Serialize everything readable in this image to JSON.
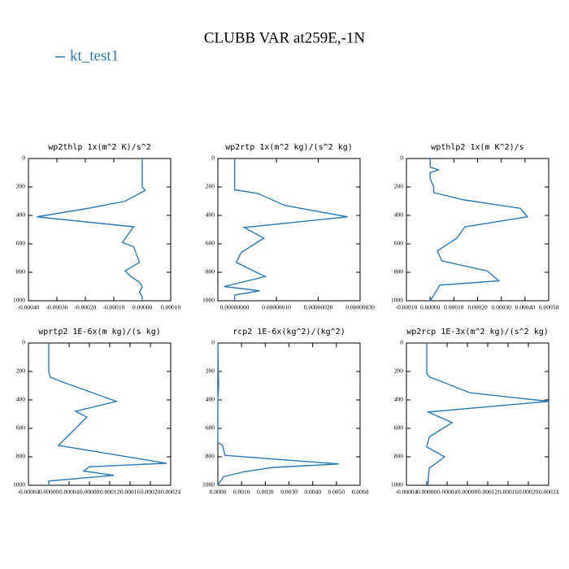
{
  "title": "CLUBB VAR at259E,-1N",
  "chart_data": [
    {
      "type": "line",
      "title": "wp2thlp  1x(m^2 K)/s^2",
      "series": [
        {
          "name": "kt_test1",
          "color": "#2a7ab8",
          "values": [
            0,
            0,
            1e-05,
            -5e-06,
            -6e-05,
            -0.00019,
            -0.00037,
            -3e-05,
            -7e-05,
            -3e-05,
            -1e-05,
            -6e-05,
            -4e-05,
            -1e-05,
            0,
            -1e-05,
            0,
            0
          ]
        }
      ],
      "y": [
        0,
        200,
        225,
        240,
        300,
        350,
        410,
        480,
        590,
        620,
        730,
        790,
        830,
        870,
        900,
        940,
        970,
        1000
      ],
      "xlim": [
        -0.0004,
        0.0001
      ],
      "ylim": [
        0,
        1000
      ],
      "yticks": [
        0,
        200,
        400,
        600,
        800,
        1000
      ],
      "xticks": [
        {
          "value": -0.0004,
          "label": "-0.00040"
        },
        {
          "value": -0.0003,
          "label": "-0.00030"
        },
        {
          "value": -0.0002,
          "label": "-0.00020"
        },
        {
          "value": -0.0001,
          "label": "-0.00010"
        },
        {
          "value": 0,
          "label": "0.00000"
        },
        {
          "value": 0.0001,
          "label": "0.00010"
        }
      ]
    },
    {
      "type": "line",
      "title": "wp2rtp  1x(m^2 kg)/(s^2 kg)",
      "series": [
        {
          "color": "#2a7ab8",
          "values": [
            0,
            0,
            5.5e-08,
            1.2e-07,
            2.7e-07,
            2.3e-08,
            7e-08,
            1.6e-08,
            4e-09,
            7.3e-08,
            -2.5e-08,
            6e-08,
            0,
            0
          ]
        }
      ],
      "y": [
        0,
        220,
        245,
        330,
        410,
        485,
        560,
        660,
        730,
        830,
        900,
        930,
        960,
        1000
      ],
      "xlim": [
        -4e-08,
        3e-07
      ],
      "ylim": [
        0,
        1000
      ],
      "yticks": [
        0,
        200,
        400,
        600,
        800,
        1000
      ],
      "xticks": [
        {
          "value": 0,
          "label": "0.00000000"
        },
        {
          "value": 1e-07,
          "label": "0.00000010"
        },
        {
          "value": 2e-07,
          "label": "0.00000020"
        },
        {
          "value": 3e-07,
          "label": "0.00000030"
        }
      ]
    },
    {
      "type": "line",
      "title": "wpthlp2  1x(m K^2)/s",
      "series": [
        {
          "color": "#2a7ab8",
          "values": [
            0,
            0,
            3.5e-05,
            0,
            0,
            1.5e-05,
            1.5e-05,
            0.00014,
            0.00038,
            0.00041,
            0.000147,
            0.000113,
            3e-05,
            5e-05,
            0.00024,
            0.00029,
            4e-05,
            2e-05,
            0
          ]
        }
      ],
      "y": [
        0,
        60,
        80,
        100,
        140,
        200,
        240,
        290,
        350,
        410,
        480,
        560,
        650,
        720,
        790,
        860,
        890,
        950,
        1000
      ],
      "xlim": [
        -0.0001,
        0.0005
      ],
      "ylim": [
        0,
        1000
      ],
      "yticks": [
        0,
        200,
        400,
        600,
        800,
        1000
      ],
      "xticks": [
        {
          "value": -0.0001,
          "label": "-0.00010"
        },
        {
          "value": 0,
          "label": "0.00000"
        },
        {
          "value": 0.0001,
          "label": "0.00010"
        },
        {
          "value": 0.0002,
          "label": "0.00020"
        },
        {
          "value": 0.0003,
          "label": "0.00030"
        },
        {
          "value": 0.0004,
          "label": "0.00040"
        },
        {
          "value": 0.0005,
          "label": "0.00050"
        }
      ]
    },
    {
      "type": "line",
      "title": "wprtp2  1E-6x(m kg)/(s kg)",
      "series": [
        {
          "color": "#2a7ab8",
          "values": [
            0,
            0,
            3e-06,
            2.4e-05,
            0.000133,
            5.3e-05,
            7.5e-05,
            1.9e-05,
            0.000232,
            8e-05,
            6.9e-05,
            0.000128,
            0,
            0
          ]
        }
      ],
      "y": [
        0,
        200,
        240,
        270,
        410,
        480,
        520,
        720,
        845,
        870,
        900,
        930,
        970,
        1000
      ],
      "xlim": [
        -4e-05,
        0.00024
      ],
      "ylim": [
        0,
        1000
      ],
      "yticks": [
        0,
        200,
        400,
        600,
        800,
        1000
      ],
      "xticks": [
        {
          "value": -4e-05,
          "label": "-0.00004"
        },
        {
          "value": 0,
          "label": "0.00000"
        },
        {
          "value": 4e-05,
          "label": "0.00004"
        },
        {
          "value": 8e-05,
          "label": "0.00008"
        },
        {
          "value": 0.00012,
          "label": "0.00012"
        },
        {
          "value": 0.00016,
          "label": "0.00016"
        },
        {
          "value": 0.0002,
          "label": "0.00020"
        },
        {
          "value": 0.00024,
          "label": "0.00024"
        }
      ]
    },
    {
      "type": "line",
      "title": "rcp2  1E-6x(kg^2)/(kg^2)",
      "series": [
        {
          "color": "#2a7ab8",
          "values": [
            0,
            3e-05,
            0,
            0,
            0.0002,
            0.0003,
            0.0051,
            0.0023,
            0.0011,
            0.00024,
            0
          ]
        }
      ],
      "y": [
        0,
        300,
        410,
        700,
        720,
        790,
        850,
        875,
        905,
        940,
        1000
      ],
      "xlim": [
        0,
        0.006
      ],
      "ylim": [
        0,
        1000
      ],
      "yticks": [
        0,
        200,
        400,
        600,
        800,
        1000
      ],
      "xticks": [
        {
          "value": 0,
          "label": "0.0000"
        },
        {
          "value": 0.001,
          "label": "0.0010"
        },
        {
          "value": 0.002,
          "label": "0.0020"
        },
        {
          "value": 0.003,
          "label": "0.0030"
        },
        {
          "value": 0.004,
          "label": "0.0040"
        },
        {
          "value": 0.005,
          "label": "0.0050"
        },
        {
          "value": 0.006,
          "label": "0.0060"
        }
      ]
    },
    {
      "type": "line",
      "title": "wp2rcp  1E-3x(m^2 kg)/(s^2 kg)",
      "series": [
        {
          "color": "#2a7ab8",
          "values": [
            0,
            0,
            6e-06,
            3.2e-05,
            8.5e-05,
            0.00024,
            3e-06,
            5e-05,
            5e-06,
            0,
            3.5e-05,
            5e-06,
            3e-06,
            3e-06
          ]
        }
      ],
      "y": [
        0,
        215,
        240,
        275,
        350,
        410,
        485,
        560,
        660,
        730,
        800,
        880,
        950,
        1000
      ],
      "xlim": [
        -4e-05,
        0.00024
      ],
      "ylim": [
        0,
        1000
      ],
      "yticks": [
        0,
        200,
        400,
        600,
        800,
        1000
      ],
      "xticks": [
        {
          "value": -4e-05,
          "label": "-0.00004"
        },
        {
          "value": 0,
          "label": "0.00000"
        },
        {
          "value": 4e-05,
          "label": "0.00004"
        },
        {
          "value": 8e-05,
          "label": "0.00008"
        },
        {
          "value": 0.00012,
          "label": "0.00012"
        },
        {
          "value": 0.00016,
          "label": "0.00016"
        },
        {
          "value": 0.0002,
          "label": "0.00020"
        },
        {
          "value": 0.00024,
          "label": "0.00024"
        }
      ]
    }
  ]
}
